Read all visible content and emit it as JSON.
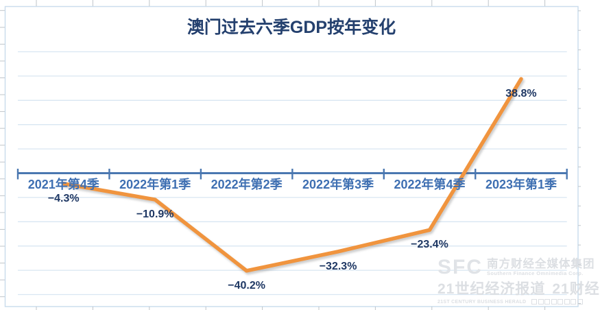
{
  "chart_data": {
    "type": "line",
    "title": "澳门过去六季GDP按年变化",
    "categories": [
      "2021年第4季",
      "2022年第1季",
      "2022年第2季",
      "2022年第3季",
      "2022年第4季",
      "2023年第1季"
    ],
    "values": [
      -4.3,
      -10.9,
      -40.2,
      -32.3,
      -23.4,
      38.8
    ],
    "data_labels": [
      "−4.3%",
      "−10.9%",
      "−40.2%",
      "−32.3%",
      "−23.4%",
      "38.8%"
    ],
    "xlabel": "",
    "ylabel": "",
    "ylim": [
      -50,
      50
    ],
    "gridline_step": 10,
    "grid": true,
    "legend": "none",
    "y_tick_labels_visible": false,
    "category_axis_position": 0,
    "colors": {
      "line": "#f0943e",
      "axis": "#4a77b0",
      "category_labels": "#3e6fb2",
      "data_labels": "#1f3864",
      "title": "#24406e",
      "gridline": "#d8e6f2",
      "chart_border": "#cbdded",
      "sheet_ticks": "#bfc5ca"
    }
  },
  "watermark": {
    "logo_text": "SFC",
    "line1": "南方财经全媒体集团",
    "line1_sub": "Southern Finance Omnimedia Corp.",
    "line2": "21世纪经济报道",
    "line2b": "21财经",
    "line2_sub": "21ST CENTURY BUSINESS HERALD"
  }
}
